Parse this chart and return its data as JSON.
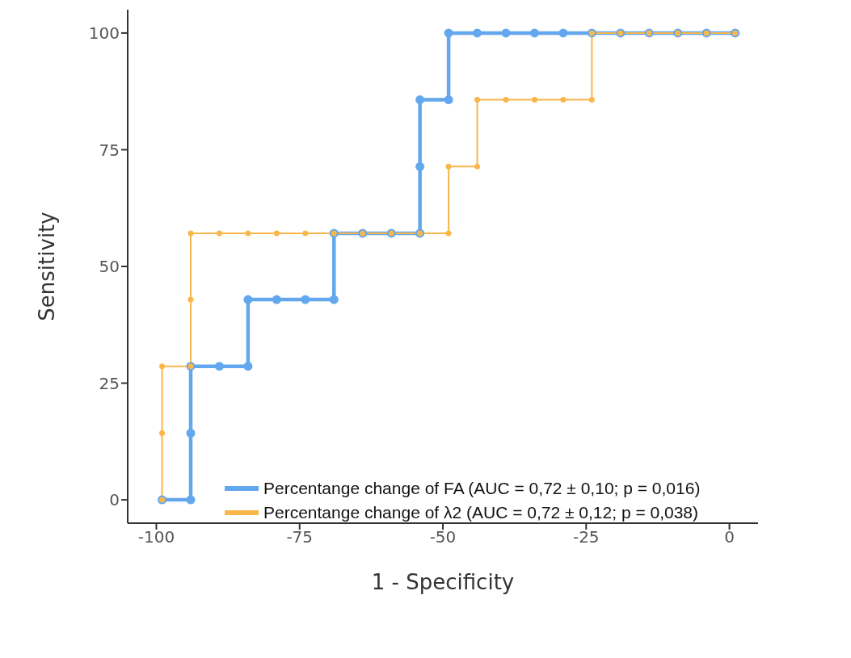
{
  "chart_data": {
    "type": "line",
    "xlabel": "1 - Specificity",
    "ylabel": "Sensitivity",
    "xlim": [
      -105,
      5
    ],
    "xticks": [
      -100,
      -75,
      -50,
      -25,
      0
    ],
    "ylim": [
      -5,
      105
    ],
    "yticks": [
      0,
      25,
      50,
      75,
      100
    ],
    "grid": false,
    "marker": "circle",
    "line_style": "solid",
    "legend": "bottom right",
    "series": [
      {
        "name": "Percentange change of FA (AUC = 0,72 ± 0,10; p = 0,016)",
        "color": "#63a8ee",
        "x": [
          -99,
          -94,
          -94,
          -94,
          -89,
          -84,
          -84,
          -79,
          -74,
          -69,
          -69,
          -64,
          -59,
          -54,
          -54,
          -54,
          -49,
          -49,
          -44,
          -39,
          -34,
          -29,
          -24,
          -19,
          -14,
          -9,
          -4,
          1
        ],
        "values": [
          0,
          0,
          14.3,
          28.6,
          28.6,
          28.6,
          42.9,
          42.9,
          42.9,
          42.9,
          57.1,
          57.1,
          57.1,
          57.1,
          71.4,
          85.7,
          85.7,
          100,
          100,
          100,
          100,
          100,
          100,
          100,
          100,
          100,
          100,
          100
        ]
      },
      {
        "name": "Percentange change of λ2 (AUC = 0,72 ± 0,12; p = 0,038)",
        "color": "#f9b64a",
        "x": [
          -99,
          -99,
          -99,
          -94,
          -94,
          -94,
          -89,
          -84,
          -79,
          -74,
          -69,
          -64,
          -59,
          -54,
          -49,
          -49,
          -44,
          -44,
          -39,
          -34,
          -29,
          -24,
          -24,
          -19,
          -14,
          -9,
          -4,
          1
        ],
        "values": [
          0,
          14.3,
          28.6,
          28.6,
          42.9,
          57.1,
          57.1,
          57.1,
          57.1,
          57.1,
          57.1,
          57.1,
          57.1,
          57.1,
          57.1,
          71.4,
          71.4,
          85.7,
          85.7,
          85.7,
          85.7,
          85.7,
          100,
          100,
          100,
          100,
          100,
          100
        ]
      }
    ]
  }
}
